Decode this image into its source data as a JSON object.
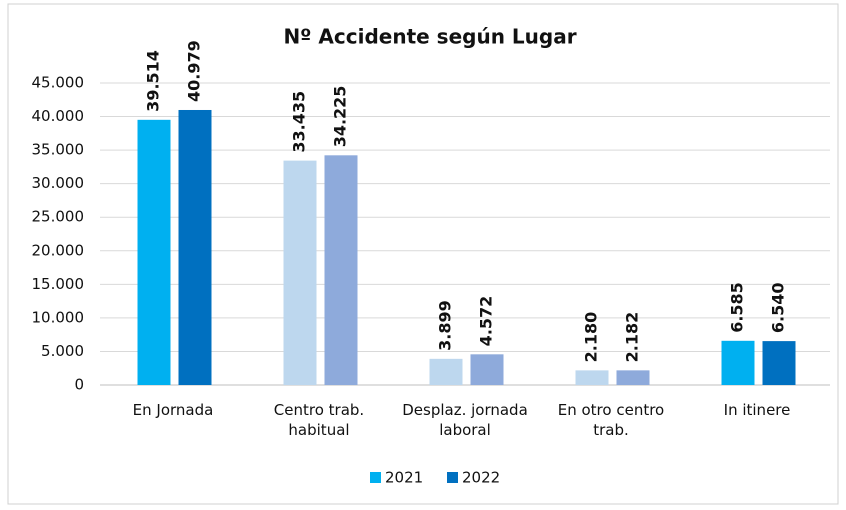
{
  "chart_data": {
    "type": "bar",
    "title": "Nº Accidente según Lugar",
    "categories": [
      "En Jornada",
      "Centro trab. habitual",
      "Desplaz. jornada laboral",
      "En otro centro trab.",
      "In itinere"
    ],
    "series": [
      {
        "name": "2021",
        "color": "#00b0f0",
        "colors": [
          "#00b0f0",
          "#bdd7ee",
          "#bdd7ee",
          "#bdd7ee",
          "#00b0f0"
        ],
        "values": [
          39514,
          33435,
          3899,
          2180,
          6585
        ],
        "value_labels": [
          "39.514",
          "33.435",
          "3.899",
          "2.180",
          "6.585"
        ]
      },
      {
        "name": "2022",
        "color": "#0070c0",
        "colors": [
          "#0070c0",
          "#8eaadb",
          "#8eaadb",
          "#8eaadb",
          "#0070c0"
        ],
        "values": [
          40979,
          34225,
          4572,
          2182,
          6540
        ],
        "value_labels": [
          "40.979",
          "34.225",
          "4.572",
          "2.182",
          "6.540"
        ]
      }
    ],
    "ylim": [
      0,
      45000
    ],
    "yticks": [
      0,
      {
        "value": 5000,
        "label": "5.000"
      },
      {
        "value": 10000,
        "label": "10.000"
      },
      {
        "value": 15000,
        "label": "15.000"
      },
      {
        "value": 20000,
        "label": "20.000"
      },
      {
        "value": 25000,
        "label": "25.000"
      },
      {
        "value": 30000,
        "label": "30.000"
      },
      {
        "value": 35000,
        "label": "35.000"
      },
      {
        "value": 40000,
        "label": "40.000"
      },
      {
        "value": 45000,
        "label": "45.000"
      }
    ],
    "grid": true
  }
}
